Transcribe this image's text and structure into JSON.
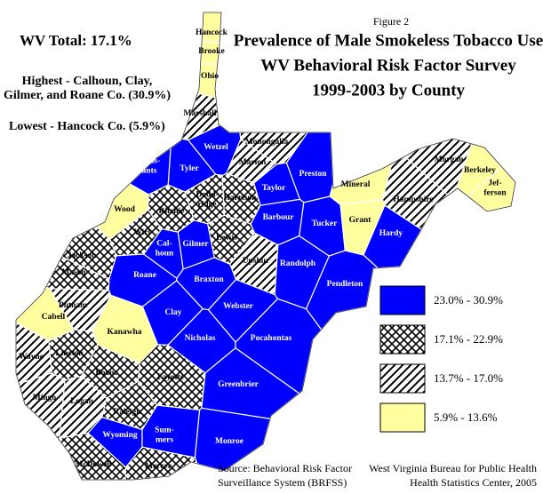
{
  "figure": "Figure 2",
  "title": [
    "Prevalence of Male Smokeless Tobacco Use",
    "WV Behavioral Risk Factor Survey",
    "1999-2003 by County"
  ],
  "total": "WV Total:  17.1%",
  "highest": [
    "Highest - Calhoun, Clay,",
    "Gilmer, and Roane Co. (30.9%)"
  ],
  "lowest": "Lowest - Hancock Co. (5.9%)",
  "legend": [
    {
      "label": "23.0% - 30.9%",
      "color": "#0000ff",
      "pattern": "solid"
    },
    {
      "label": "17.1% - 22.9%",
      "color": "#ff0000",
      "pattern": "crosshatch"
    },
    {
      "label": "13.7% - 17.0%",
      "color": "#0000cc",
      "pattern": "hatch"
    },
    {
      "label": "5.9% - 13.6%",
      "color": "#ffffa0",
      "pattern": "solid"
    }
  ],
  "counties": [
    {
      "name": [
        "Hancock"
      ],
      "class": 3
    },
    {
      "name": [
        "Brooke"
      ],
      "class": 3
    },
    {
      "name": [
        "Ohio"
      ],
      "class": 3
    },
    {
      "name": [
        "Marshall"
      ],
      "class": 2
    },
    {
      "name": [
        "Wetzel"
      ],
      "class": 0
    },
    {
      "name": [
        "Monongalia"
      ],
      "class": 2
    },
    {
      "name": [
        "Marion"
      ],
      "class": 2
    },
    {
      "name": [
        "Preston"
      ],
      "class": 0
    },
    {
      "name": [
        "Tyler"
      ],
      "class": 0
    },
    {
      "name": [
        "Pleas-",
        "ants"
      ],
      "class": 0
    },
    {
      "name": [
        "Dodd-",
        "ridge"
      ],
      "class": 1
    },
    {
      "name": [
        "Harrison"
      ],
      "class": 1
    },
    {
      "name": [
        "Taylor"
      ],
      "class": 0
    },
    {
      "name": [
        "Mineral"
      ],
      "class": 3
    },
    {
      "name": [
        "Grant"
      ],
      "class": 3
    },
    {
      "name": [
        "Morgan"
      ],
      "class": 2
    },
    {
      "name": [
        "Berkeley"
      ],
      "class": 3
    },
    {
      "name": [
        "Jef-",
        "ferson"
      ],
      "class": 3
    },
    {
      "name": [
        "Hampshire"
      ],
      "class": 2
    },
    {
      "name": [
        "Hardy"
      ],
      "class": 0
    },
    {
      "name": [
        "Wood"
      ],
      "class": 3
    },
    {
      "name": [
        "Ritchie"
      ],
      "class": 1
    },
    {
      "name": [
        "Barbour"
      ],
      "class": 0
    },
    {
      "name": [
        "Tucker"
      ],
      "class": 0
    },
    {
      "name": [
        "Wirt"
      ],
      "class": 1
    },
    {
      "name": [
        "Lewis"
      ],
      "class": 1
    },
    {
      "name": [
        "Gilmer"
      ],
      "class": 0
    },
    {
      "name": [
        "Cal-",
        "houn"
      ],
      "class": 0
    },
    {
      "name": [
        "Jackson"
      ],
      "class": 1
    },
    {
      "name": [
        "Upshur"
      ],
      "class": 2
    },
    {
      "name": [
        "Randolph"
      ],
      "class": 0
    },
    {
      "name": [
        "Mason"
      ],
      "class": 1
    },
    {
      "name": [
        "Roane"
      ],
      "class": 0
    },
    {
      "name": [
        "Braxton"
      ],
      "class": 0
    },
    {
      "name": [
        "Pendleton"
      ],
      "class": 0
    },
    {
      "name": [
        "Putnam"
      ],
      "class": 2
    },
    {
      "name": [
        "Cabell"
      ],
      "class": 3
    },
    {
      "name": [
        "Clay"
      ],
      "class": 0
    },
    {
      "name": [
        "Webster"
      ],
      "class": 0
    },
    {
      "name": [
        "Kanawha"
      ],
      "class": 3
    },
    {
      "name": [
        "Nicholas"
      ],
      "class": 0
    },
    {
      "name": [
        "Pocahontas"
      ],
      "class": 0
    },
    {
      "name": [
        "Wayne"
      ],
      "class": 2
    },
    {
      "name": [
        "Lincoln"
      ],
      "class": 1
    },
    {
      "name": [
        "Boone"
      ],
      "class": 1
    },
    {
      "name": [
        "Fayette"
      ],
      "class": 1
    },
    {
      "name": [
        "Greenbrier"
      ],
      "class": 0
    },
    {
      "name": [
        "Mingo"
      ],
      "class": 2
    },
    {
      "name": [
        "Logan"
      ],
      "class": 2
    },
    {
      "name": [
        "Raleigh"
      ],
      "class": 1
    },
    {
      "name": [
        "Wyoming"
      ],
      "class": 0
    },
    {
      "name": [
        "Sum-",
        "mers"
      ],
      "class": 0
    },
    {
      "name": [
        "Monroe"
      ],
      "class": 0
    },
    {
      "name": [
        "McDowell"
      ],
      "class": 1
    },
    {
      "name": [
        "Mercer"
      ],
      "class": 1
    }
  ],
  "source": [
    "Source:  Behavioral Risk Factor",
    "Surveillance System (BRFSS)"
  ],
  "agency": [
    "West Virginia Bureau for Public Health",
    "Health Statistics Center, 2005"
  ]
}
